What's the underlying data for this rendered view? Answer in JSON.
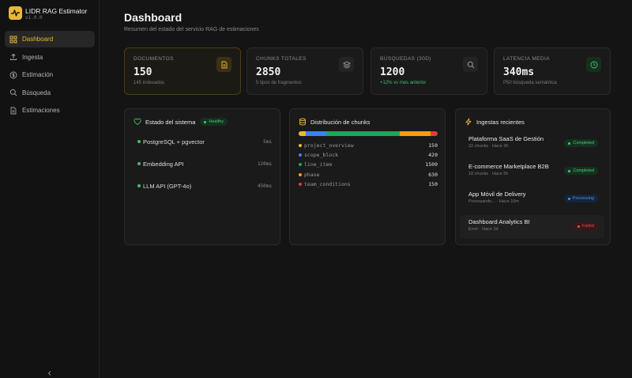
{
  "app": {
    "name": "LIDR RAG Estimator",
    "version": "v1.0.0"
  },
  "nav": [
    {
      "label": "Dashboard",
      "icon": "grid-icon",
      "active": true
    },
    {
      "label": "Ingesta",
      "icon": "upload-icon",
      "active": false
    },
    {
      "label": "Estimación",
      "icon": "dollar-circle-icon",
      "active": false
    },
    {
      "label": "Búsqueda",
      "icon": "search-icon",
      "active": false
    },
    {
      "label": "Estimaciones",
      "icon": "document-icon",
      "active": false
    }
  ],
  "header": {
    "title": "Dashboard",
    "subtitle": "Resumen del estado del servicio RAG de estimaciones"
  },
  "stats": [
    {
      "label": "DOCUMENTOS",
      "value": "150",
      "note": "145 indexados",
      "icon": "file-icon"
    },
    {
      "label": "CHUNKS TOTALES",
      "value": "2850",
      "note": "5 tipos de fragmentos",
      "icon": "layers-icon"
    },
    {
      "label": "BÚSQUEDAS (30D)",
      "value": "1200",
      "note": "+12% vs mes anterior",
      "icon": "search-icon"
    },
    {
      "label": "LATENCIA MEDIA",
      "value": "340ms",
      "note": "P50 búsqueda semántica",
      "icon": "clock-icon"
    }
  ],
  "system": {
    "title": "Estado del sistema",
    "badge": "Healthy",
    "services": [
      {
        "name": "PostgreSQL + pgvector",
        "latency": "5ms"
      },
      {
        "name": "Embedding API",
        "latency": "120ms"
      },
      {
        "name": "LLM API (GPT-4o)",
        "latency": "450ms"
      }
    ]
  },
  "chunks": {
    "title": "Distribución de chunks",
    "items": [
      {
        "type": "project_overview",
        "count": 150,
        "color": "#e8b838"
      },
      {
        "type": "scope_block",
        "count": 420,
        "color": "#3b82f6"
      },
      {
        "type": "line_item",
        "count": 1500,
        "color": "#22a55a"
      },
      {
        "type": "phase",
        "count": 630,
        "color": "#f59e0b"
      },
      {
        "type": "team_conditions",
        "count": 150,
        "color": "#e03c3c"
      }
    ]
  },
  "ingestions": {
    "title": "Ingestas recientes",
    "items": [
      {
        "title": "Plataforma SaaS de Gestión",
        "meta": "22 chunks · Hace 2h",
        "status": "Completed",
        "kind": "completed"
      },
      {
        "title": "E-commerce Marketplace B2B",
        "meta": "18 chunks · Hace 5h",
        "status": "Completed",
        "kind": "completed"
      },
      {
        "title": "App Móvil de Delivery",
        "meta": "Procesando... · Hace 10m",
        "status": "Processing",
        "kind": "processing"
      },
      {
        "title": "Dashboard Analytics BI",
        "meta": "Error · Hace 1d",
        "status": "Failed",
        "kind": "failed"
      }
    ]
  }
}
